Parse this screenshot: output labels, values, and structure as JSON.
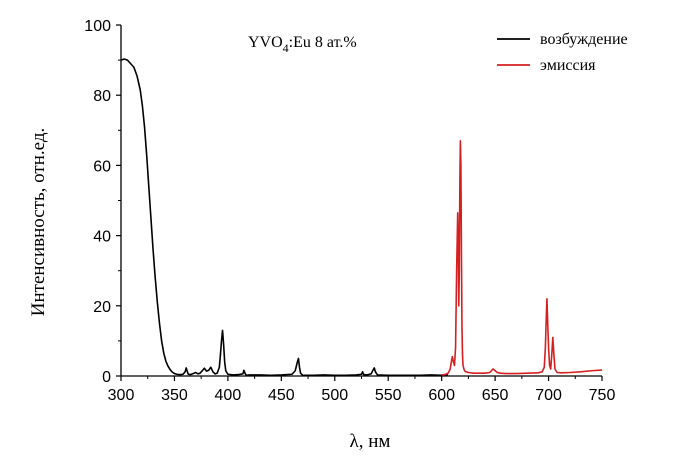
{
  "chart_data": {
    "type": "line",
    "title": "",
    "annotation": {
      "text": "YVO",
      "sub": "4",
      "rest": ":Eu 8 ат.%"
    },
    "xlabel": "λ, нм",
    "ylabel": "Интенсивность, отн.ед.",
    "xlim": [
      300,
      750
    ],
    "ylim": [
      0,
      100
    ],
    "xticks": [
      300,
      350,
      400,
      450,
      500,
      550,
      600,
      650,
      700,
      750
    ],
    "yticks": [
      0,
      20,
      40,
      60,
      80,
      100
    ],
    "grid": false,
    "legend_position": "top-right",
    "series": [
      {
        "name": "возбуждение",
        "color": "#000000",
        "x": [
          300,
          303,
          306,
          309,
          312,
          315,
          318,
          320,
          322,
          324,
          326,
          328,
          330,
          332,
          334,
          336,
          338,
          340,
          342,
          344,
          346,
          348,
          350,
          352,
          354,
          356,
          358,
          360,
          361,
          362,
          363,
          365,
          370,
          372,
          374,
          376,
          378,
          380,
          382,
          384,
          386,
          388,
          390,
          392,
          393,
          394,
          395,
          396,
          397,
          398,
          400,
          405,
          410,
          414,
          415,
          416,
          417,
          418,
          420,
          430,
          440,
          450,
          460,
          463,
          465,
          466,
          467,
          468,
          470,
          480,
          490,
          500,
          510,
          520,
          525,
          526,
          527,
          530,
          534,
          536,
          537,
          538,
          540,
          550,
          560,
          570,
          580,
          590,
          600,
          606
        ],
        "y": [
          90,
          90.3,
          90,
          89,
          88,
          85.5,
          81.5,
          77,
          71,
          63,
          54,
          45,
          36,
          28,
          21,
          15,
          10,
          6.5,
          4.2,
          2.8,
          1.8,
          1.1,
          0.7,
          0.5,
          0.4,
          0.4,
          0.5,
          1.2,
          2.3,
          1.3,
          0.5,
          0.4,
          1,
          0.6,
          0.8,
          1.5,
          2.2,
          1.4,
          1.6,
          2.5,
          1.2,
          0.6,
          0.8,
          2.5,
          6,
          10,
          13,
          9,
          4,
          1.5,
          0.5,
          0.3,
          0.4,
          0.6,
          1.6,
          0.8,
          0.3,
          0.2,
          0.3,
          0.3,
          0.2,
          0.3,
          0.5,
          1.5,
          4,
          5,
          2.5,
          0.8,
          0.2,
          0.2,
          0.3,
          0.2,
          0.2,
          0.3,
          0.5,
          1.2,
          0.4,
          0.3,
          0.6,
          1.8,
          2.3,
          1.2,
          0.3,
          0.2,
          0.2,
          0.2,
          0.2,
          0.3,
          0.2,
          0.3
        ]
      },
      {
        "name": "эмиссия",
        "color": "#d42020",
        "x": [
          600,
          603,
          606,
          608,
          609,
          610,
          611,
          612,
          613,
          614,
          615,
          615.5,
          616,
          616.5,
          617,
          617.5,
          618,
          618.5,
          619,
          619.5,
          620,
          621,
          622,
          625,
          630,
          640,
          645,
          648,
          650,
          652,
          655,
          660,
          670,
          680,
          690,
          694,
          696,
          697,
          698,
          698.5,
          699,
          700,
          701,
          702,
          703,
          704,
          705,
          706,
          708,
          712,
          720,
          730,
          740,
          750
        ],
        "y": [
          0.3,
          0.4,
          0.8,
          2,
          4,
          5.5,
          4,
          3,
          8,
          30,
          46.5,
          38,
          20,
          30,
          55,
          67,
          60,
          35,
          14,
          6,
          3,
          1.8,
          1.3,
          1,
          0.8,
          0.8,
          1,
          2,
          1.5,
          1,
          0.8,
          0.7,
          0.7,
          0.8,
          0.9,
          1.2,
          2.5,
          8,
          18,
          22,
          17,
          8,
          3,
          2,
          6,
          11,
          6,
          2,
          1,
          0.9,
          1,
          1.2,
          1.5,
          1.7
        ]
      }
    ]
  }
}
